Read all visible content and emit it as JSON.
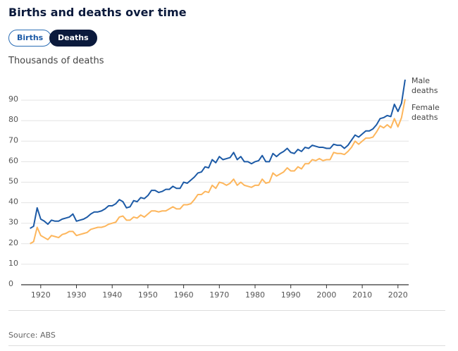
{
  "chart_data": {
    "type": "line",
    "title": "Births and deaths over time",
    "buttons": [
      "Births",
      "Deaths"
    ],
    "subtitle": "Thousands of deaths",
    "source": "Source: ABS",
    "x": [
      1917,
      1918,
      1919,
      1920,
      1921,
      1922,
      1923,
      1924,
      1925,
      1926,
      1927,
      1928,
      1929,
      1930,
      1931,
      1932,
      1933,
      1934,
      1935,
      1936,
      1937,
      1938,
      1939,
      1940,
      1941,
      1942,
      1943,
      1944,
      1945,
      1946,
      1947,
      1948,
      1949,
      1950,
      1951,
      1952,
      1953,
      1954,
      1955,
      1956,
      1957,
      1958,
      1959,
      1960,
      1961,
      1962,
      1963,
      1964,
      1965,
      1966,
      1967,
      1968,
      1969,
      1970,
      1971,
      1972,
      1973,
      1974,
      1975,
      1976,
      1977,
      1978,
      1979,
      1980,
      1981,
      1982,
      1983,
      1984,
      1985,
      1986,
      1987,
      1988,
      1989,
      1990,
      1991,
      1992,
      1993,
      1994,
      1995,
      1996,
      1997,
      1998,
      1999,
      2000,
      2001,
      2002,
      2003,
      2004,
      2005,
      2006,
      2007,
      2008,
      2009,
      2010,
      2011,
      2012,
      2013,
      2014,
      2015,
      2016,
      2017,
      2018,
      2019,
      2020,
      2021,
      2022
    ],
    "series": [
      {
        "name": "Male deaths",
        "color": "#1c5aa6",
        "values": [
          27.5,
          28.5,
          37.5,
          32,
          31,
          29.5,
          31.5,
          31,
          31,
          32,
          32.5,
          33,
          34.5,
          31,
          31.5,
          32,
          33,
          34.5,
          35.5,
          35.5,
          36,
          37,
          38.5,
          38.5,
          39.5,
          41.5,
          40.5,
          37.5,
          38,
          41,
          40.5,
          42.5,
          42,
          43.5,
          46,
          46,
          45,
          45.5,
          46.5,
          46.5,
          48,
          47,
          47,
          50,
          49.5,
          51,
          52.5,
          54.5,
          55,
          57.5,
          57,
          61,
          59.5,
          62.5,
          61,
          61.5,
          62,
          64.5,
          61,
          62.5,
          60,
          60,
          59,
          60,
          60.5,
          63,
          60,
          60,
          64,
          62.5,
          64,
          65,
          66.5,
          64.5,
          64,
          66,
          65,
          67,
          66.5,
          68,
          67.5,
          67,
          67,
          66.5,
          66.5,
          68.5,
          68,
          68,
          66.5,
          68,
          70.5,
          73,
          72,
          73.5,
          75,
          75,
          76,
          78,
          81,
          81.5,
          82.5,
          82,
          88,
          84.5,
          88.5,
          100
        ]
      },
      {
        "name": "Female deaths",
        "color": "#fdb65c",
        "values": [
          20,
          21,
          28,
          24,
          23,
          22,
          24,
          23.5,
          23,
          24.5,
          25,
          26,
          26,
          24,
          24.5,
          25,
          25.5,
          27,
          27.5,
          28,
          28,
          28.5,
          29.5,
          30,
          30.5,
          33,
          33.5,
          31.5,
          31.5,
          33,
          32.5,
          34,
          33,
          34.5,
          36,
          36,
          35.5,
          36,
          36,
          37,
          38,
          37,
          37,
          39,
          39,
          39.5,
          41.5,
          44,
          44,
          45.5,
          45,
          48.5,
          47,
          50,
          49.5,
          48.5,
          49.5,
          51.5,
          48.5,
          50,
          48.5,
          48,
          47.5,
          48.5,
          48.5,
          51.5,
          49.5,
          50,
          54.5,
          53,
          54,
          55,
          57,
          55.5,
          55.5,
          57.5,
          56.5,
          59,
          59,
          61,
          60.5,
          61.5,
          60.5,
          61,
          61,
          64.5,
          64,
          64,
          63.5,
          65,
          67,
          70,
          68.5,
          70,
          71.5,
          71.5,
          72,
          74.5,
          77.5,
          76.5,
          78,
          76.5,
          81,
          77,
          81.5,
          90.5
        ]
      }
    ],
    "xlim": [
      1915.5,
      2023
    ],
    "xticks": [
      1920,
      1930,
      1940,
      1950,
      1960,
      1970,
      1980,
      1990,
      2000,
      2010,
      2020
    ],
    "ylim": [
      0,
      100
    ],
    "yticks": [
      0,
      10,
      20,
      30,
      40,
      50,
      60,
      70,
      80,
      90
    ],
    "grid": true
  }
}
